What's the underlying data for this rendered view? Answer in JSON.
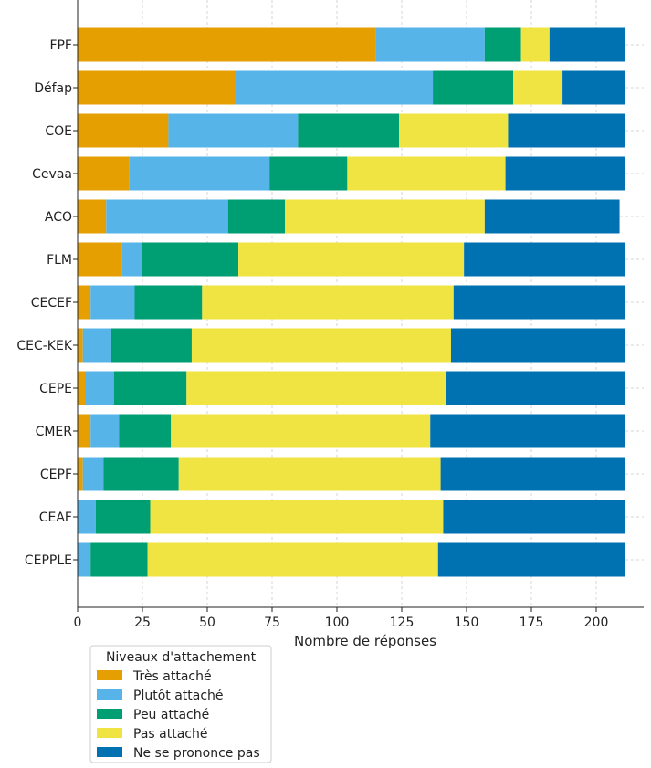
{
  "chart_data": {
    "type": "bar",
    "orientation": "horizontal",
    "stacked": true,
    "categories": [
      "FPF",
      "Défap",
      "COE",
      "Cevaa",
      "ACO",
      "FLM",
      "CECEF",
      "CEC-KEK",
      "CEPE",
      "CMER",
      "CEPF",
      "CEAF",
      "CEPPLE"
    ],
    "series": [
      {
        "name": "Très attaché",
        "color": "#E69F00",
        "values": [
          115,
          61,
          35,
          20,
          11,
          17,
          5,
          2,
          3,
          5,
          2,
          0,
          0
        ]
      },
      {
        "name": "Plutôt attaché",
        "color": "#56B4E9",
        "values": [
          42,
          76,
          50,
          54,
          47,
          8,
          17,
          11,
          11,
          11,
          8,
          7,
          5
        ]
      },
      {
        "name": "Peu attaché",
        "color": "#009E73",
        "values": [
          14,
          31,
          39,
          30,
          22,
          37,
          26,
          31,
          28,
          20,
          29,
          21,
          22
        ]
      },
      {
        "name": "Pas attaché",
        "color": "#F0E442",
        "values": [
          11,
          19,
          42,
          61,
          77,
          87,
          97,
          100,
          100,
          100,
          101,
          113,
          112
        ]
      },
      {
        "name": "Ne se prononce pas",
        "color": "#0072B2",
        "values": [
          29,
          24,
          45,
          46,
          52,
          62,
          66,
          67,
          69,
          75,
          71,
          70,
          72
        ]
      }
    ],
    "xlabel": "Nombre de réponses",
    "ylabel": "",
    "xlim": [
      0,
      220
    ],
    "xticks": [
      0,
      25,
      50,
      75,
      100,
      125,
      150,
      175,
      200
    ],
    "grid": true,
    "legend": {
      "title": "Niveaux d'attachement",
      "placement": "below-left"
    }
  }
}
